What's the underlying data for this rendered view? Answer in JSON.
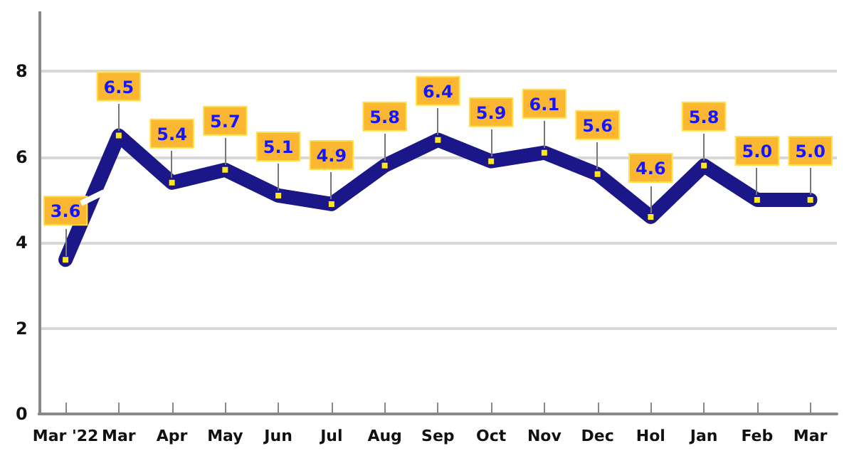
{
  "chart_data": {
    "type": "line",
    "categories": [
      "Mar '22",
      "Mar",
      "Apr",
      "May",
      "Jun",
      "Jul",
      "Aug",
      "Sep",
      "Oct",
      "Nov",
      "Dec",
      "Hol",
      "Jan",
      "Feb",
      "Mar"
    ],
    "series": [
      {
        "color": "#1c1788",
        "values": [
          3.6,
          6.5,
          5.4,
          5.7,
          5.1,
          4.9,
          5.8,
          6.4,
          5.9,
          6.1,
          5.6,
          4.6,
          5.8,
          5.0,
          5.0
        ],
        "value_labels": [
          "3.6",
          "6.5",
          "5.4",
          "5.7",
          "5.1",
          "4.9",
          "5.8",
          "6.4",
          "5.9",
          "6.1",
          "5.6",
          "4.6",
          "5.8",
          "5.0",
          "5.0"
        ]
      }
    ],
    "ylim": [
      0,
      9.4
    ],
    "yticks": [
      0,
      2,
      4,
      6,
      8
    ],
    "grid": "y",
    "marker": "square",
    "line_style": "solid"
  }
}
